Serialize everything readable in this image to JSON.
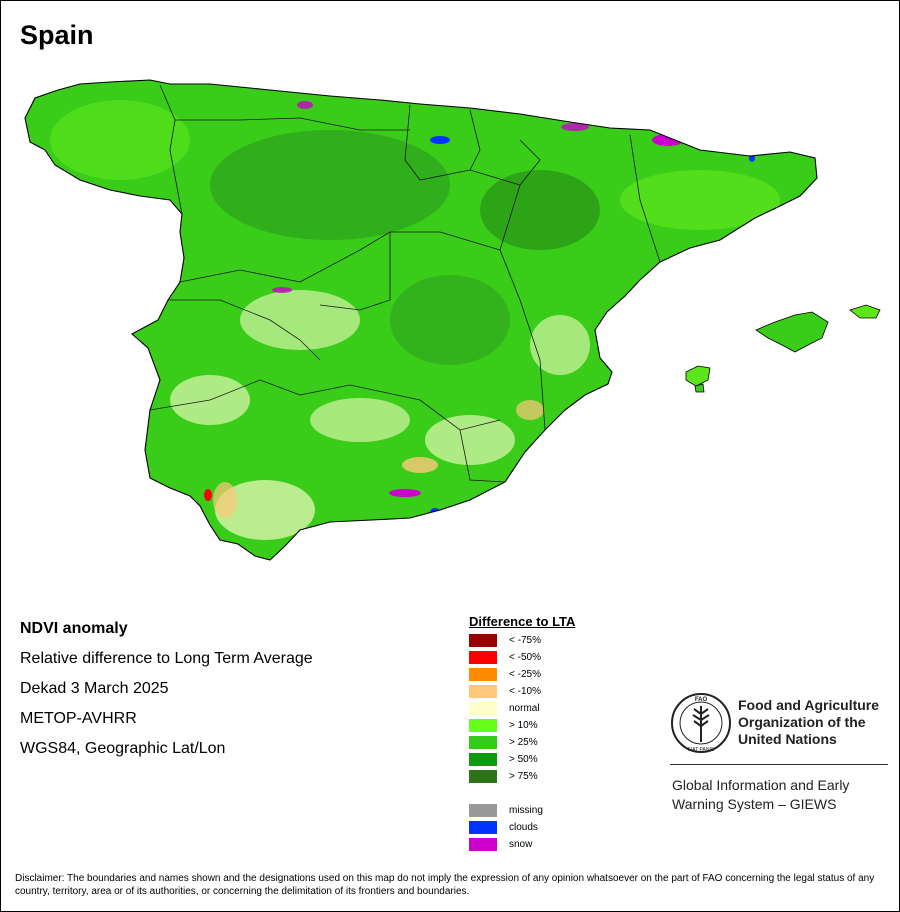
{
  "country": "Spain",
  "info": {
    "lines": [
      "NDVI anomaly",
      "Relative difference to Long Term Average",
      "Dekad 3 March 2025",
      "METOP-AVHRR",
      "WGS84, Geographic Lat/Lon"
    ]
  },
  "legend": {
    "title": "Difference to LTA",
    "classes": [
      {
        "label": "< -75%",
        "color": "#990000"
      },
      {
        "label": "< -50%",
        "color": "#ff0000"
      },
      {
        "label": "< -25%",
        "color": "#ff8c00"
      },
      {
        "label": "< -10%",
        "color": "#ffc87a"
      },
      {
        "label": "normal",
        "color": "#ffffcc"
      },
      {
        "label": "> 10%",
        "color": "#66ff1a"
      },
      {
        "label": "> 25%",
        "color": "#33cc1a"
      },
      {
        "label": "> 50%",
        "color": "#109910"
      },
      {
        "label": "> 75%",
        "color": "#2e7319"
      }
    ],
    "other": [
      {
        "label": "missing",
        "color": "#999999"
      },
      {
        "label": "clouds",
        "color": "#0033ff"
      },
      {
        "label": "snow",
        "color": "#cc00cc"
      }
    ]
  },
  "fao": {
    "logo_letters": "FAO",
    "logo_motto": "FIAT PANIS",
    "name_lines": [
      "Food and Agriculture",
      "Organization of the",
      "United Nations"
    ],
    "giews_lines": [
      "Global Information and Early",
      "Warning System – GIEWS"
    ]
  },
  "disclaimer": "Disclaimer: The boundaries and names shown and the designations used on this map do not imply the expression of any opinion whatsoever on the part of FAO concerning the legal status of any country, territory, area or of its authorities, or concerning the delimitation of its frontiers and boundaries."
}
